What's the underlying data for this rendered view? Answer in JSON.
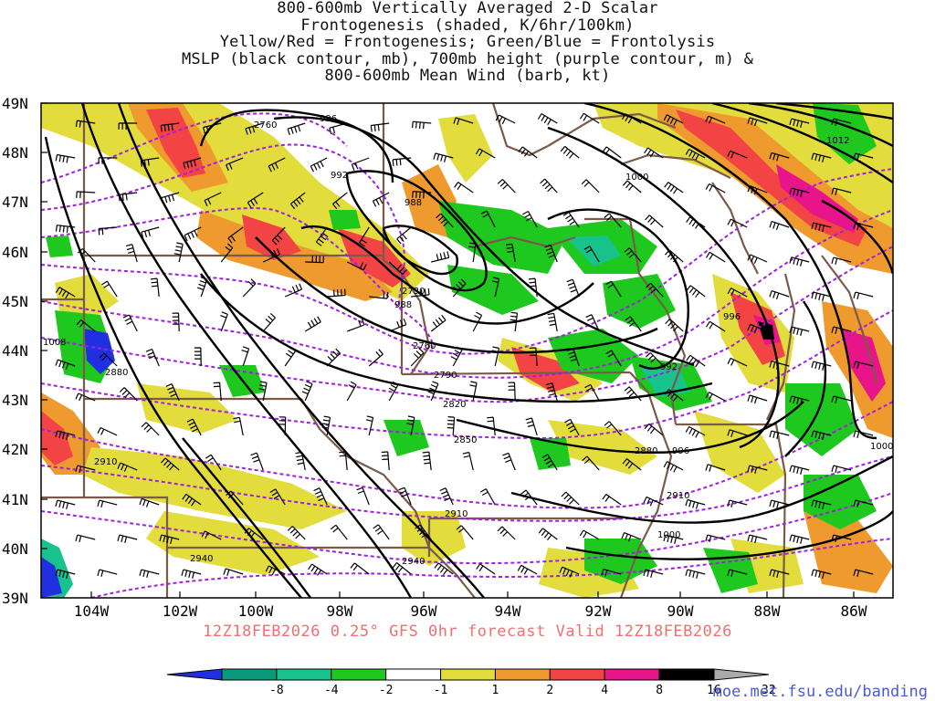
{
  "title_lines": [
    "800-600mb Vertically Averaged 2-D Scalar",
    "Frontogenesis (shaded, K/6hr/100km)",
    "Yellow/Red = Frontogenesis;  Green/Blue = Frontolysis",
    "MSLP (black contour, mb), 700mb height (purple contour, m) &",
    "800-600mb Mean Wind (barb, kt)"
  ],
  "subtitle": "12Z18FEB2026 0.25° GFS 0hr forecast Valid 12Z18FEB2026",
  "credit": "moe.met.fsu.edu/banding",
  "lat_labels": [
    "49N",
    "48N",
    "47N",
    "46N",
    "45N",
    "44N",
    "43N",
    "42N",
    "41N",
    "40N",
    "39N"
  ],
  "lon_labels": [
    "104W",
    "102W",
    "100W",
    "98W",
    "96W",
    "94W",
    "92W",
    "90W",
    "88W",
    "86W"
  ],
  "mslp_labels": [
    "996",
    "992",
    "988",
    "988",
    "996",
    "992",
    "1000",
    "1000",
    "996",
    "1000",
    "1008",
    "1012"
  ],
  "height_labels": [
    "2760",
    "2730",
    "2760",
    "2790",
    "2820",
    "2850",
    "2880",
    "2880",
    "2910",
    "2910",
    "2910",
    "2940",
    "2940"
  ],
  "colorbar": {
    "labels": [
      "-8",
      "-4",
      "-2",
      "-1",
      "1",
      "2",
      "4",
      "8",
      "16",
      "32"
    ],
    "colors": [
      "#2030e0",
      "#0a9a7a",
      "#18c28c",
      "#1ec81e",
      "#ffffff",
      "#e2dc3c",
      "#ee9a2e",
      "#f24444",
      "#e8148a",
      "#000000",
      "#aaaaaa"
    ]
  }
}
